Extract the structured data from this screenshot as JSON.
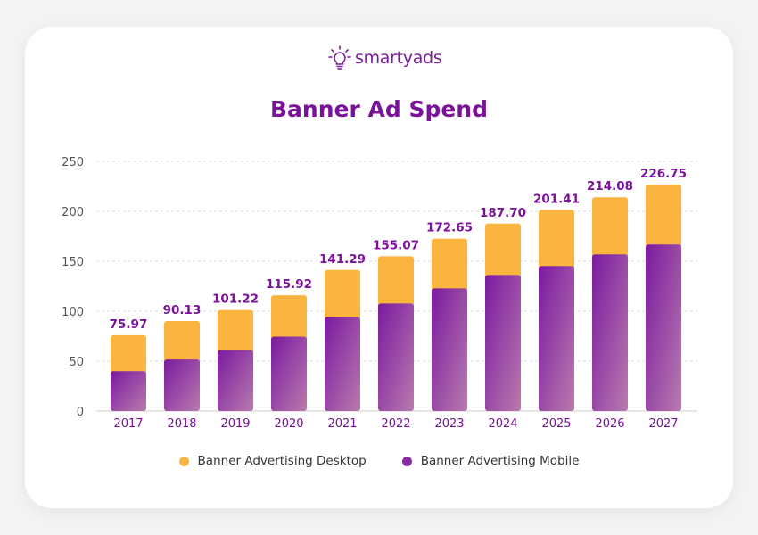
{
  "logo": {
    "text": "smartyads",
    "icon": "lightbulb-icon"
  },
  "chart_data": {
    "type": "bar",
    "stacked": true,
    "title": "Banner Ad Spend",
    "xlabel": "",
    "ylabel": "",
    "ylim": [
      0,
      250
    ],
    "yticks": [
      0,
      50,
      100,
      150,
      200,
      250
    ],
    "grid": true,
    "legend_position": "bottom",
    "categories": [
      "2017",
      "2018",
      "2019",
      "2020",
      "2021",
      "2022",
      "2023",
      "2024",
      "2025",
      "2026",
      "2027"
    ],
    "totals": [
      "75.97",
      "90.13",
      "101.22",
      "115.92",
      "141.29",
      "155.07",
      "172.65",
      "187.70",
      "201.41",
      "214.08",
      "226.75"
    ],
    "series": [
      {
        "name": "Banner Advertising Mobile",
        "color": "#7b1aa0",
        "values": [
          40,
          51.7,
          61.3,
          74.6,
          94.3,
          107.7,
          122.9,
          136.3,
          145.3,
          156.9,
          166.7
        ]
      },
      {
        "name": "Banner Advertising Desktop",
        "color": "#fab540",
        "values": [
          35.97,
          38.43,
          39.92,
          41.32,
          46.99,
          47.37,
          49.75,
          51.4,
          56.11,
          57.18,
          60.05
        ]
      }
    ]
  }
}
